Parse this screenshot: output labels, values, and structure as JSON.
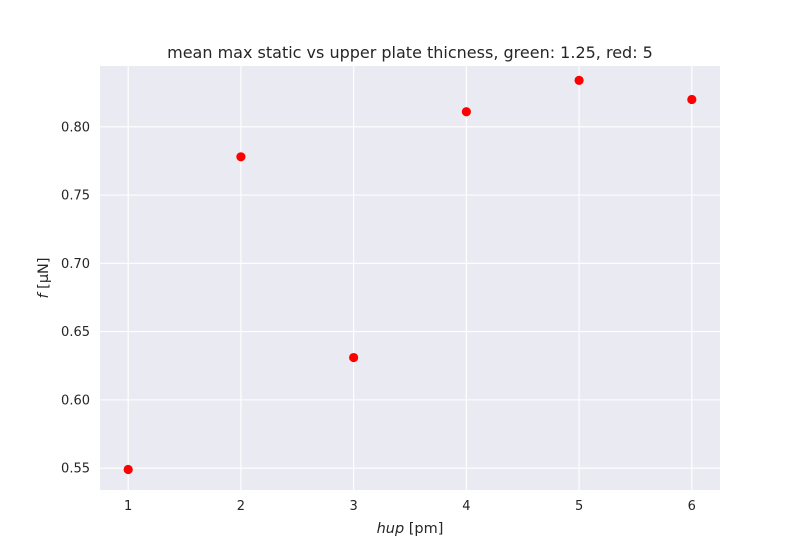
{
  "chart_data": {
    "type": "scatter",
    "title": "mean max static vs upper plate thicness, green: 1.25, red: 5",
    "xlabel": {
      "var": "hup",
      "unit": " [pm]"
    },
    "ylabel": {
      "var": "f",
      "unit": " [μN]"
    },
    "xlim": [
      0.75,
      6.25
    ],
    "ylim": [
      0.534,
      0.8445
    ],
    "xticks": [
      1,
      2,
      3,
      4,
      5,
      6
    ],
    "xtick_labels": [
      "1",
      "2",
      "3",
      "4",
      "5",
      "6"
    ],
    "yticks": [
      0.55,
      0.6,
      0.65,
      0.7,
      0.75,
      0.8
    ],
    "ytick_labels": [
      "0.55",
      "0.60",
      "0.65",
      "0.70",
      "0.75",
      "0.80"
    ],
    "grid": true,
    "series": [
      {
        "color": "#ff0000",
        "x": [
          1,
          2,
          3,
          4,
          5,
          6
        ],
        "y": [
          0.549,
          0.778,
          0.631,
          0.811,
          0.834,
          0.82
        ]
      }
    ],
    "colors": {
      "axes_bg": "#eaeaf2",
      "grid": "#ffffff",
      "text": "#262626"
    }
  }
}
